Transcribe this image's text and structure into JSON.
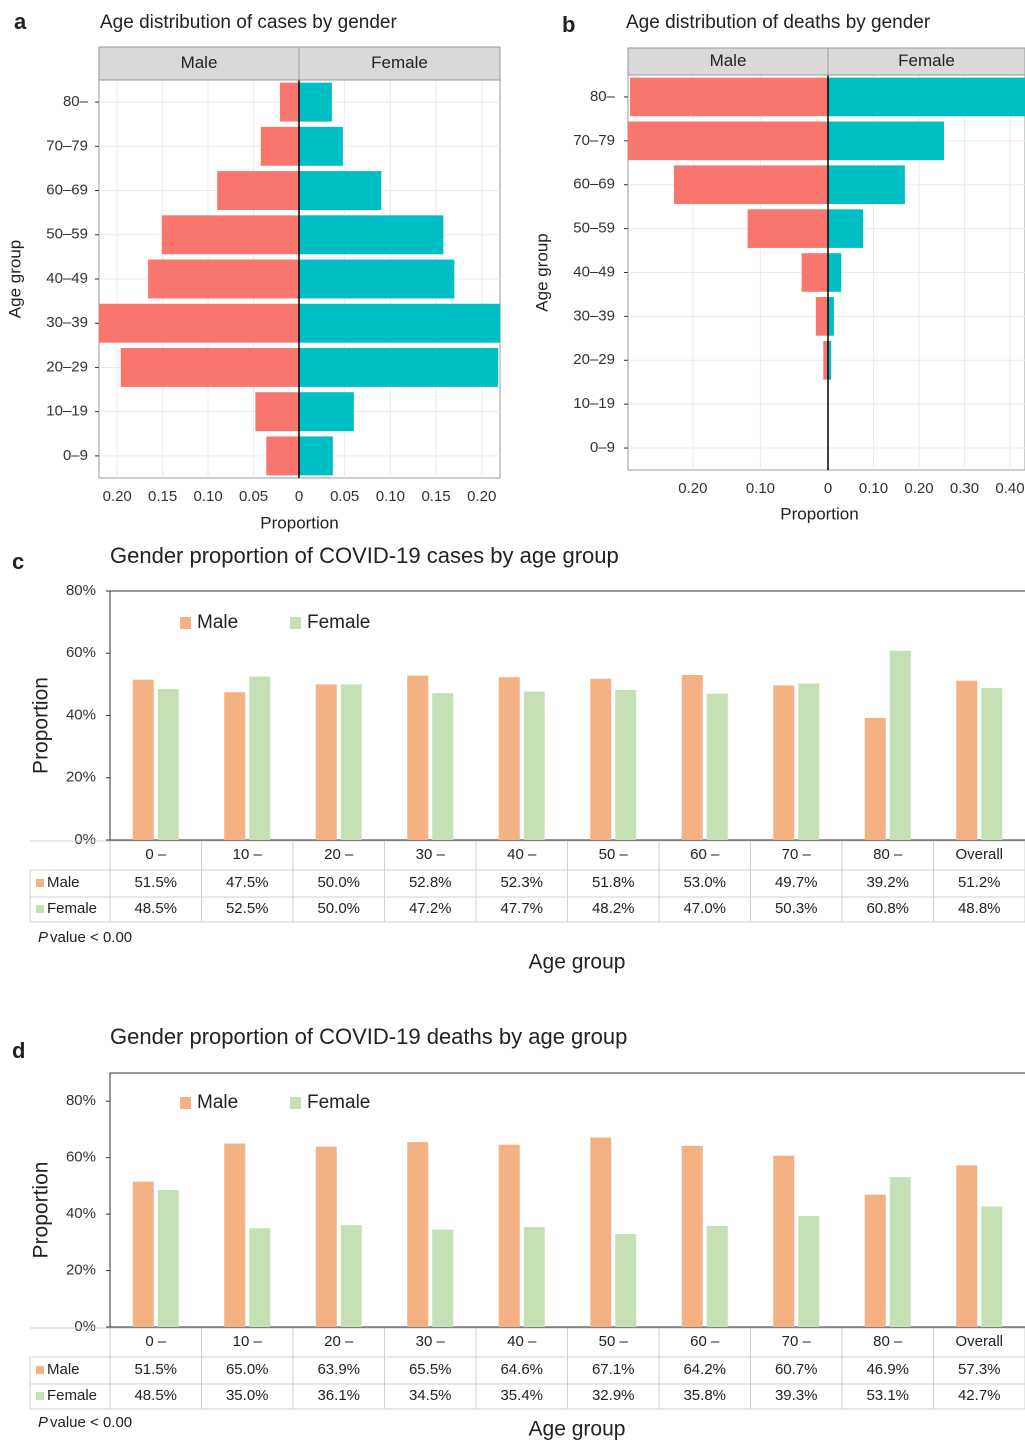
{
  "chart_data": [
    {
      "type": "pyramid",
      "panel_label": "a",
      "title": "Age distribution of cases by gender",
      "categories": [
        "0–9",
        "10–19",
        "20–29",
        "30–39",
        "40–49",
        "50–59",
        "60–69",
        "70–79",
        "80–"
      ],
      "series": [
        {
          "name": "Male",
          "color": "#F8766D",
          "values": [
            -0.036,
            -0.048,
            -0.196,
            -0.23,
            -0.166,
            -0.151,
            -0.09,
            -0.042,
            -0.021
          ]
        },
        {
          "name": "Female",
          "color": "#00BFC4",
          "values": [
            0.037,
            0.06,
            0.218,
            0.23,
            0.17,
            0.158,
            0.09,
            0.048,
            0.036
          ]
        }
      ],
      "male_xlim": [
        -0.22,
        0
      ],
      "female_xlim": [
        0,
        0.22
      ],
      "male_xticks": [
        {
          "value": -0.2,
          "label": "0.20"
        },
        {
          "value": -0.15,
          "label": "0.15"
        },
        {
          "value": -0.1,
          "label": "0.10"
        },
        {
          "value": -0.05,
          "label": "0.05"
        }
      ],
      "female_xticks": [
        0,
        {
          "value": 0.05,
          "label": "0.05"
        },
        {
          "value": 0.1,
          "label": "0.10"
        },
        {
          "value": 0.15,
          "label": "0.15"
        },
        {
          "value": 0.2,
          "label": "0.20"
        }
      ],
      "x_label": "Proportion",
      "y_label": "Age group",
      "grid": true
    },
    {
      "type": "pyramid",
      "panel_label": "b",
      "title": "Age distribution of deaths by gender",
      "categories": [
        "0–9",
        "10–19",
        "20–29",
        "30–39",
        "40–49",
        "50–59",
        "60–69",
        "70–79",
        "80–"
      ],
      "series": [
        {
          "name": "Male",
          "color": "#F8766D",
          "values": [
            0,
            0,
            -0.007,
            -0.018,
            -0.039,
            -0.119,
            -0.228,
            -0.31,
            -0.293
          ]
        },
        {
          "name": "Female",
          "color": "#00BFC4",
          "values": [
            0,
            0,
            0.007,
            0.013,
            0.029,
            0.077,
            0.169,
            0.255,
            0.45
          ]
        }
      ],
      "male_xlim": [
        -0.296,
        0
      ],
      "female_xlim": [
        0,
        0.433
      ],
      "male_xticks": [
        {
          "value": -0.2,
          "label": "0.20"
        },
        {
          "value": -0.1,
          "label": "0.10"
        }
      ],
      "female_xticks": [
        0,
        {
          "value": 0.1,
          "label": "0.10"
        },
        {
          "value": 0.2,
          "label": "0.20"
        },
        {
          "value": 0.3,
          "label": "0.30"
        },
        {
          "value": 0.4,
          "label": "0.40"
        }
      ],
      "x_label": "Proportion",
      "y_label": "Age group",
      "grid": true
    },
    {
      "type": "bar",
      "panel_label": "c",
      "title": "Gender proportion of COVID-19 cases by age group",
      "categories": [
        "0 –",
        "10 –",
        "20 –",
        "30 –",
        "40 –",
        "50 –",
        "60 –",
        "70 –",
        "80 –",
        "Overall"
      ],
      "series": [
        {
          "name": "Male",
          "color": "#F4B183",
          "values": [
            51.5,
            47.5,
            50.0,
            52.8,
            52.3,
            51.8,
            53.0,
            49.7,
            39.2,
            51.2
          ],
          "value_labels": [
            "51.5%",
            "47.5%",
            "50.0%",
            "52.8%",
            "52.3%",
            "51.8%",
            "53.0%",
            "49.7%",
            "39.2%",
            "51.2%"
          ]
        },
        {
          "name": "Female",
          "color": "#C5E0B4",
          "values": [
            48.5,
            52.5,
            50.0,
            47.2,
            47.7,
            48.2,
            47.0,
            50.3,
            60.8,
            48.8
          ],
          "value_labels": [
            "48.5%",
            "52.5%",
            "50.0%",
            "47.2%",
            "47.7%",
            "48.2%",
            "47.0%",
            "50.3%",
            "60.8%",
            "48.8%"
          ]
        }
      ],
      "ylim": [
        0,
        80
      ],
      "yticks": [
        {
          "value": 0,
          "label": "0%"
        },
        {
          "value": 20,
          "label": "20%"
        },
        {
          "value": 40,
          "label": "40%"
        },
        {
          "value": 60,
          "label": "60%"
        },
        {
          "value": 80,
          "label": "80%"
        }
      ],
      "y_label": "Proportion",
      "x_label": "Age group",
      "footnote_italic": "P",
      "footnote": "value < 0.00"
    },
    {
      "type": "bar",
      "panel_label": "d",
      "title": "Gender proportion of COVID-19 deaths by age group",
      "categories": [
        "0 –",
        "10 –",
        "20 –",
        "30 –",
        "40 –",
        "50 –",
        "60 –",
        "70 –",
        "80 –",
        "Overall"
      ],
      "series": [
        {
          "name": "Male",
          "color": "#F4B183",
          "values": [
            51.5,
            65.0,
            63.9,
            65.5,
            64.6,
            67.1,
            64.2,
            60.7,
            46.9,
            57.3
          ],
          "value_labels": [
            "51.5%",
            "65.0%",
            "63.9%",
            "65.5%",
            "64.6%",
            "67.1%",
            "64.2%",
            "60.7%",
            "46.9%",
            "57.3%"
          ]
        },
        {
          "name": "Female",
          "color": "#C5E0B4",
          "values": [
            48.5,
            35.0,
            36.1,
            34.5,
            35.4,
            32.9,
            35.8,
            39.3,
            53.1,
            42.7
          ],
          "value_labels": [
            "48.5%",
            "35.0%",
            "36.1%",
            "34.5%",
            "35.4%",
            "32.9%",
            "35.8%",
            "39.3%",
            "53.1%",
            "42.7%"
          ]
        }
      ],
      "ylim": [
        0,
        90
      ],
      "yticks": [
        {
          "value": 0,
          "label": "0%"
        },
        {
          "value": 20,
          "label": "20%"
        },
        {
          "value": 40,
          "label": "40%"
        },
        {
          "value": 60,
          "label": "60%"
        },
        {
          "value": 80,
          "label": "80%"
        }
      ],
      "y_label": "Proportion",
      "x_label": "Age group",
      "footnote_italic": "P",
      "footnote": "value < 0.00"
    }
  ]
}
